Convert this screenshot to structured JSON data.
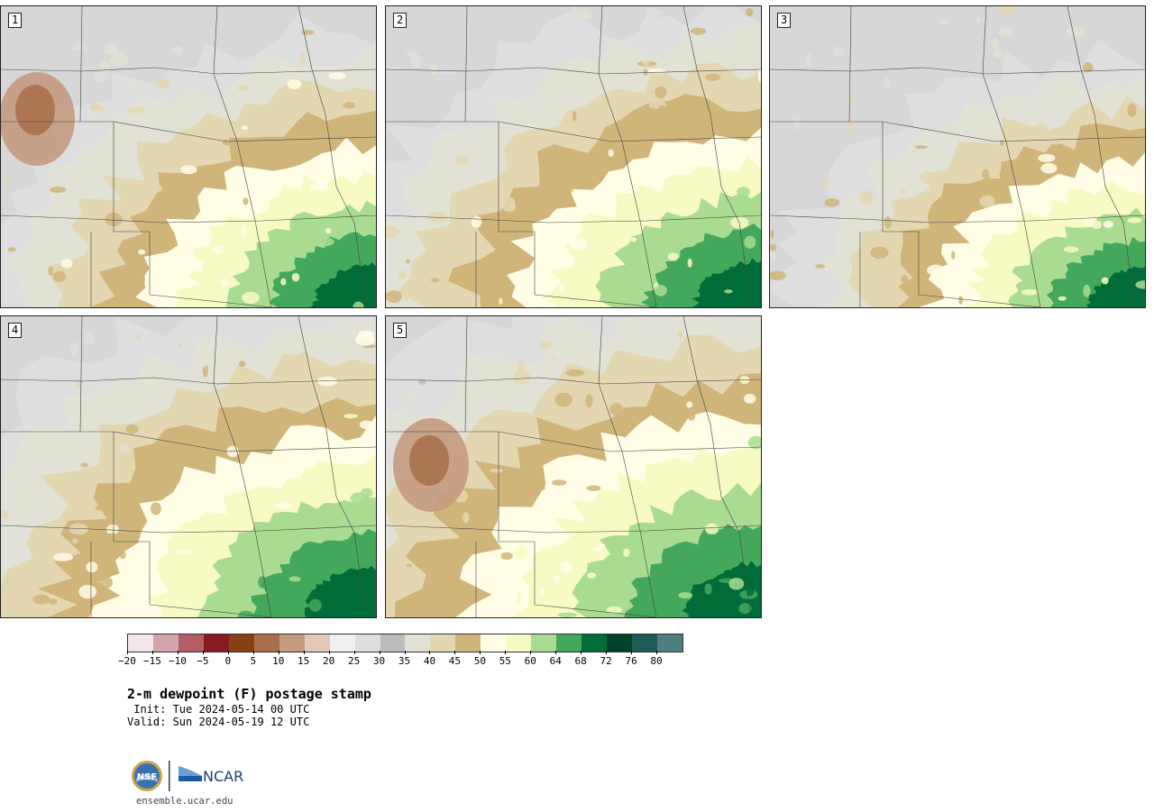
{
  "panels": [
    {
      "label": "1",
      "moisture": 0.45
    },
    {
      "label": "2",
      "moisture": 0.55
    },
    {
      "label": "3",
      "moisture": 0.35
    },
    {
      "label": "4",
      "moisture": 0.65
    },
    {
      "label": "5",
      "moisture": 0.75
    }
  ],
  "colorbar": {
    "colors": [
      "#f3e6ea",
      "#d4a3ac",
      "#b35c66",
      "#8a1a22",
      "#884012",
      "#a86e4a",
      "#c49a80",
      "#e2c8b8",
      "#f1f1f1",
      "#dedede",
      "#bcbcbc",
      "#e2e1d6",
      "#e3d7b2",
      "#cfb57a",
      "#fffde6",
      "#f8fac4",
      "#a9dc90",
      "#43a85c",
      "#006d38",
      "#00422a",
      "#1f5a56",
      "#4e7e82"
    ],
    "tick_labels": [
      "−20",
      "−15",
      "−10",
      "−5",
      "0",
      "5",
      "10",
      "15",
      "20",
      "25",
      "30",
      "35",
      "40",
      "45",
      "50",
      "55",
      "60",
      "64",
      "68",
      "72",
      "76",
      "80"
    ]
  },
  "title": "2-m dewpoint (F) postage stamp",
  "init": " Init: Tue 2024-05-14 00 UTC",
  "valid": "Valid: Sun 2024-05-19 12 UTC",
  "logos": {
    "nsf": "NSF",
    "ncar": "NCAR"
  },
  "website": "ensemble.ucar.edu"
}
